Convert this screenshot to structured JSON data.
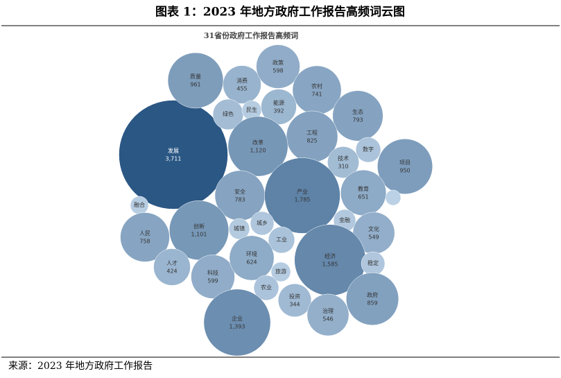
{
  "header": {
    "title": "图表 1：2023 年地方政府工作报告高频词云图"
  },
  "chart_data": {
    "type": "bubble",
    "title": "31省份政府工作报告高频词",
    "categories": [
      "发展",
      "质量",
      "消费",
      "政策",
      "农村",
      "绿色",
      "民生",
      "能源",
      "生态",
      "工程",
      "改革",
      "数字",
      "技术",
      "项目",
      "安全",
      "产业",
      "教育",
      null,
      "融合",
      "人民",
      "创新",
      "城镇",
      "城乡",
      "金融",
      "文化",
      "工业",
      "人才",
      "科技",
      "环境",
      "经济",
      "稳定",
      "旅游",
      "农业",
      "投资",
      "治理",
      "政府",
      "企业"
    ],
    "values": [
      3711,
      961,
      455,
      598,
      741,
      291,
      118,
      392,
      793,
      825,
      1120,
      195,
      310,
      950,
      783,
      1785,
      651,
      73,
      102,
      758,
      1101,
      135,
      174,
      154,
      549,
      217,
      424,
      599,
      624,
      1585,
      174,
      118,
      195,
      344,
      546,
      859,
      1393
    ],
    "value_labels": [
      "3,711",
      "961",
      "455",
      "598",
      "741",
      null,
      null,
      "392",
      "793",
      "825",
      "1,120",
      null,
      "310",
      "950",
      "783",
      "1,785",
      "651",
      null,
      null,
      "758",
      "1,101",
      null,
      null,
      null,
      "549",
      null,
      "424",
      "599",
      "624",
      "1,585",
      null,
      null,
      null,
      "344",
      "546",
      "859",
      "1,393"
    ],
    "color_range": [
      "#d3e5f5",
      "#2b5784"
    ]
  },
  "footer": {
    "source": "来源：2023 年地方政府工作报告"
  }
}
